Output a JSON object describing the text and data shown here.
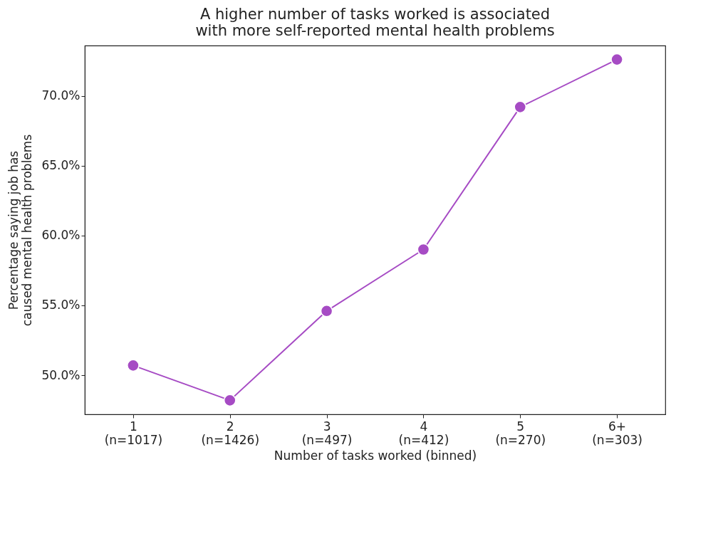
{
  "chart_data": {
    "type": "line",
    "title": "A higher number of tasks worked is associated\nwith more self-reported mental health problems",
    "xlabel": "Number of tasks worked (binned)",
    "ylabel": "Percentage saying job has\ncaused mental health problems",
    "categories": [
      "1\n(n=1017)",
      "2\n(n=1426)",
      "3\n(n=497)",
      "4\n(n=412)",
      "5\n(n=270)",
      "6+\n(n=303)"
    ],
    "series": [
      {
        "color": "#a64bc4",
        "values": [
          50.7,
          48.2,
          54.6,
          59.0,
          69.2,
          72.6
        ]
      }
    ],
    "ylim": [
      47.2,
      73.6
    ],
    "yticks": [
      {
        "value": 50,
        "label": "50.0%"
      },
      {
        "value": 55,
        "label": "55.0%"
      },
      {
        "value": 60,
        "label": "60.0%"
      },
      {
        "value": 65,
        "label": "65.0%"
      },
      {
        "value": 70,
        "label": "70.0%"
      }
    ],
    "marker": "circle",
    "grid": false,
    "legend": false
  }
}
